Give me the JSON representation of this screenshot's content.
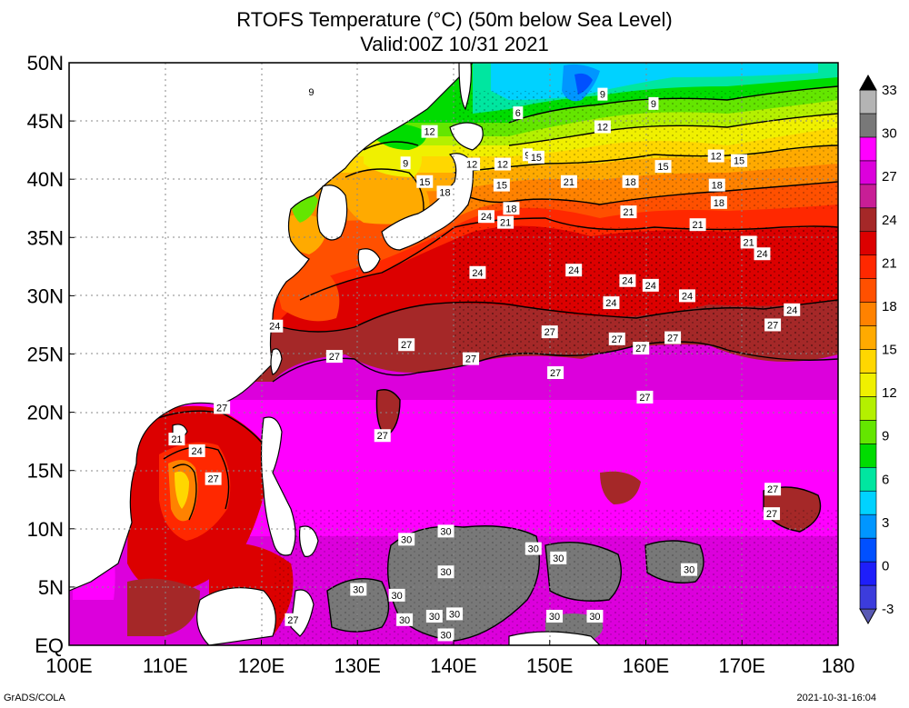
{
  "title": {
    "line1": "RTOFS Temperature (°C) (50m below Sea Level)",
    "line2": "Valid:00Z 10/31 2021"
  },
  "map": {
    "lon_range": [
      100,
      180
    ],
    "lat_range": [
      0,
      50
    ],
    "lon_ticks": [
      "100E",
      "110E",
      "120E",
      "130E",
      "140E",
      "150E",
      "160E",
      "170E",
      "180"
    ],
    "lat_ticks": [
      "EQ",
      "5N",
      "10N",
      "15N",
      "20N",
      "25N",
      "30N",
      "35N",
      "40N",
      "45N",
      "50N"
    ],
    "gridlines": true
  },
  "colorbar": {
    "levels": [
      "-3",
      "0",
      "3",
      "6",
      "9",
      "12",
      "15",
      "18",
      "21",
      "24",
      "27",
      "30",
      "33"
    ],
    "colors": [
      "#5a5ab4",
      "#3c3cdc",
      "#1e1efa",
      "#0050ff",
      "#0096ff",
      "#00d2ff",
      "#00e6a0",
      "#00dc00",
      "#64e600",
      "#b4f000",
      "#f0f000",
      "#ffd700",
      "#ffaa00",
      "#ff8200",
      "#ff5000",
      "#ff2800",
      "#dc0000",
      "#a52828",
      "#c81e96",
      "#dc00dc",
      "#ff00ff",
      "#787878",
      "#b4b4b4",
      "#000000"
    ]
  },
  "contour_labels": [
    {
      "text": "9",
      "lon": 125.2,
      "lat": 47.5
    },
    {
      "text": "9",
      "lon": 155.5,
      "lat": 47.3
    },
    {
      "text": "9",
      "lon": 160.8,
      "lat": 46.5
    },
    {
      "text": "6",
      "lon": 146.7,
      "lat": 45.7
    },
    {
      "text": "12",
      "lon": 137.5,
      "lat": 44.1
    },
    {
      "text": "9",
      "lon": 135.0,
      "lat": 41.4
    },
    {
      "text": "15",
      "lon": 137.0,
      "lat": 39.8
    },
    {
      "text": "18",
      "lon": 139.1,
      "lat": 38.9
    },
    {
      "text": "12",
      "lon": 141.9,
      "lat": 41.3
    },
    {
      "text": "12",
      "lon": 145.1,
      "lat": 41.3
    },
    {
      "text": "15",
      "lon": 145.0,
      "lat": 39.5
    },
    {
      "text": "9",
      "lon": 147.7,
      "lat": 42.1
    },
    {
      "text": "15",
      "lon": 148.6,
      "lat": 41.9
    },
    {
      "text": "12",
      "lon": 155.5,
      "lat": 44.5
    },
    {
      "text": "15",
      "lon": 161.8,
      "lat": 41.1
    },
    {
      "text": "21",
      "lon": 152.0,
      "lat": 39.8
    },
    {
      "text": "18",
      "lon": 158.4,
      "lat": 39.8
    },
    {
      "text": "12",
      "lon": 167.3,
      "lat": 42.0
    },
    {
      "text": "15",
      "lon": 169.7,
      "lat": 41.6
    },
    {
      "text": "18",
      "lon": 167.4,
      "lat": 39.5
    },
    {
      "text": "18",
      "lon": 167.6,
      "lat": 38.0
    },
    {
      "text": "24",
      "lon": 143.4,
      "lat": 36.8
    },
    {
      "text": "18",
      "lon": 146.0,
      "lat": 37.5
    },
    {
      "text": "21",
      "lon": 145.4,
      "lat": 36.3
    },
    {
      "text": "21",
      "lon": 158.2,
      "lat": 37.2
    },
    {
      "text": "21",
      "lon": 165.4,
      "lat": 36.1
    },
    {
      "text": "21",
      "lon": 170.7,
      "lat": 34.6
    },
    {
      "text": "24",
      "lon": 172.1,
      "lat": 33.6
    },
    {
      "text": "24",
      "lon": 142.5,
      "lat": 32.0
    },
    {
      "text": "24",
      "lon": 152.5,
      "lat": 32.2
    },
    {
      "text": "24",
      "lon": 158.1,
      "lat": 31.3
    },
    {
      "text": "24",
      "lon": 160.5,
      "lat": 30.9
    },
    {
      "text": "24",
      "lon": 164.3,
      "lat": 30.0
    },
    {
      "text": "24",
      "lon": 156.4,
      "lat": 29.4
    },
    {
      "text": "24",
      "lon": 175.2,
      "lat": 28.8
    },
    {
      "text": "24",
      "lon": 121.4,
      "lat": 27.4
    },
    {
      "text": "27",
      "lon": 173.2,
      "lat": 27.5
    },
    {
      "text": "27",
      "lon": 135.1,
      "lat": 25.8
    },
    {
      "text": "27",
      "lon": 127.6,
      "lat": 24.8
    },
    {
      "text": "27",
      "lon": 141.8,
      "lat": 24.6
    },
    {
      "text": "27",
      "lon": 150.0,
      "lat": 26.9
    },
    {
      "text": "27",
      "lon": 157.0,
      "lat": 26.3
    },
    {
      "text": "27",
      "lon": 159.5,
      "lat": 25.5
    },
    {
      "text": "27",
      "lon": 162.8,
      "lat": 26.4
    },
    {
      "text": "27",
      "lon": 150.6,
      "lat": 23.4
    },
    {
      "text": "27",
      "lon": 159.9,
      "lat": 21.3
    },
    {
      "text": "27",
      "lon": 115.9,
      "lat": 20.4
    },
    {
      "text": "27",
      "lon": 132.6,
      "lat": 18.0
    },
    {
      "text": "21",
      "lon": 111.2,
      "lat": 17.7
    },
    {
      "text": "24",
      "lon": 113.3,
      "lat": 16.7
    },
    {
      "text": "27",
      "lon": 115.0,
      "lat": 14.3
    },
    {
      "text": "27",
      "lon": 173.2,
      "lat": 13.4
    },
    {
      "text": "27",
      "lon": 173.1,
      "lat": 11.3
    },
    {
      "text": "30",
      "lon": 139.2,
      "lat": 9.8
    },
    {
      "text": "30",
      "lon": 135.1,
      "lat": 9.1
    },
    {
      "text": "30",
      "lon": 148.3,
      "lat": 8.3
    },
    {
      "text": "30",
      "lon": 150.9,
      "lat": 7.5
    },
    {
      "text": "30",
      "lon": 139.2,
      "lat": 6.3
    },
    {
      "text": "30",
      "lon": 164.5,
      "lat": 6.5
    },
    {
      "text": "30",
      "lon": 130.1,
      "lat": 4.8
    },
    {
      "text": "30",
      "lon": 134.1,
      "lat": 4.3
    },
    {
      "text": "30",
      "lon": 134.9,
      "lat": 2.2
    },
    {
      "text": "30",
      "lon": 140.1,
      "lat": 2.7
    },
    {
      "text": "30",
      "lon": 138.0,
      "lat": 2.5
    },
    {
      "text": "30",
      "lon": 150.5,
      "lat": 2.5
    },
    {
      "text": "30",
      "lon": 154.7,
      "lat": 2.5
    },
    {
      "text": "30",
      "lon": 139.2,
      "lat": 0.9
    },
    {
      "text": "27",
      "lon": 123.3,
      "lat": 2.2
    }
  ],
  "footer": {
    "left": "GrADS/COLA",
    "right": "2021-10-31-16:04"
  }
}
